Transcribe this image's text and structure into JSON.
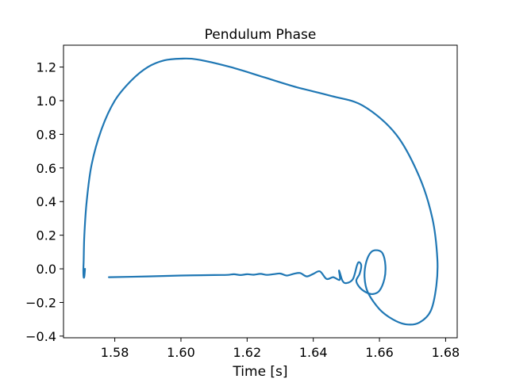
{
  "chart_data": {
    "type": "line",
    "title": "Pendulum Phase",
    "xlabel": "Time [s]",
    "ylabel": "",
    "xlim": [
      1.5645,
      1.6835
    ],
    "ylim": [
      -0.41,
      1.33
    ],
    "xticks": [
      1.58,
      1.6,
      1.62,
      1.64,
      1.66,
      1.68
    ],
    "xtick_labels": [
      "1.58",
      "1.60",
      "1.62",
      "1.64",
      "1.66",
      "1.68"
    ],
    "yticks": [
      -0.4,
      -0.2,
      0.0,
      0.2,
      0.4,
      0.6,
      0.8,
      1.0,
      1.2
    ],
    "ytick_labels": [
      "−0.4",
      "−0.2",
      "0.0",
      "0.2",
      "0.4",
      "0.6",
      "0.8",
      "1.0",
      "1.2"
    ],
    "grid": false,
    "series": [
      {
        "color": "#1f77b4",
        "x": [
          1.5782,
          1.59,
          1.6,
          1.61,
          1.614,
          1.616,
          1.618,
          1.62,
          1.622,
          1.624,
          1.626,
          1.628,
          1.63,
          1.632,
          1.634,
          1.636,
          1.638,
          1.64,
          1.642,
          1.644,
          1.646,
          1.648,
          1.6478,
          1.6488,
          1.65,
          1.652,
          1.6532,
          1.6538,
          1.6545,
          1.654,
          1.653,
          1.654,
          1.656,
          1.658,
          1.66,
          1.6615,
          1.6618,
          1.661,
          1.6595,
          1.6575,
          1.656,
          1.6555,
          1.6565,
          1.66,
          1.664,
          1.668,
          1.672,
          1.6755,
          1.6772,
          1.6775,
          1.676,
          1.672,
          1.665,
          1.655,
          1.645,
          1.635,
          1.625,
          1.615,
          1.605,
          1.6,
          1.595,
          1.59,
          1.585,
          1.58,
          1.576,
          1.573,
          1.5715,
          1.5708,
          1.5706,
          1.5705,
          1.5706,
          1.5708,
          1.571
        ],
        "y": [
          -0.05,
          -0.045,
          -0.04,
          -0.037,
          -0.036,
          -0.032,
          -0.037,
          -0.032,
          -0.035,
          -0.03,
          -0.036,
          -0.032,
          -0.028,
          -0.04,
          -0.03,
          -0.025,
          -0.045,
          -0.03,
          -0.015,
          -0.06,
          -0.05,
          -0.065,
          -0.01,
          -0.07,
          -0.085,
          -0.06,
          0.02,
          0.04,
          0.02,
          -0.03,
          -0.07,
          -0.11,
          -0.14,
          -0.15,
          -0.13,
          -0.06,
          0.02,
          0.09,
          0.11,
          0.1,
          0.04,
          -0.05,
          -0.14,
          -0.24,
          -0.3,
          -0.33,
          -0.32,
          -0.25,
          -0.1,
          0.06,
          0.3,
          0.55,
          0.8,
          0.97,
          1.03,
          1.08,
          1.14,
          1.2,
          1.245,
          1.25,
          1.24,
          1.2,
          1.12,
          1.0,
          0.83,
          0.62,
          0.4,
          0.2,
          0.05,
          -0.01,
          -0.05,
          -0.045,
          0.0
        ]
      }
    ]
  }
}
